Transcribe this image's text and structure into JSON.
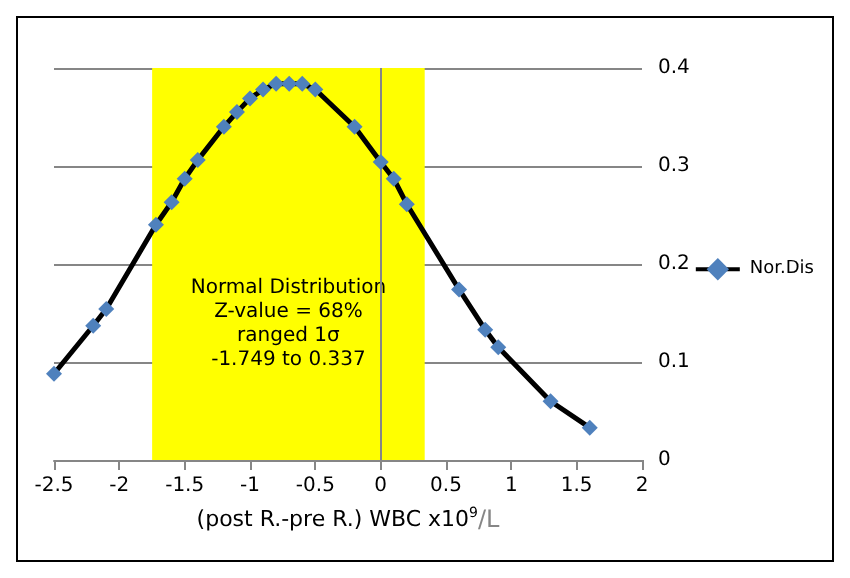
{
  "chart_data": {
    "type": "line",
    "xlabel": "(post R.-pre R.) WBC x10$^{9}$/L",
    "x": [
      -2.5,
      -2.2,
      -2.1,
      -1.72,
      -1.6,
      -1.5,
      -1.4,
      -1.2,
      -1.1,
      -1.0,
      -0.9,
      -0.8,
      -0.7,
      -0.6,
      -0.5,
      -0.2,
      0,
      0.1,
      0.2,
      0.6,
      0.8,
      0.9,
      1.3,
      1.6
    ],
    "series": [
      {
        "name": "Nor.Dis",
        "color": "#4f81bd",
        "values": [
          0.088,
          0.137,
          0.154,
          0.24,
          0.263,
          0.287,
          0.306,
          0.34,
          0.355,
          0.369,
          0.378,
          0.384,
          0.384,
          0.384,
          0.378,
          0.34,
          0.304,
          0.287,
          0.261,
          0.174,
          0.133,
          0.115,
          0.06,
          0.033
        ]
      }
    ],
    "xlim": [
      -2.5,
      2
    ],
    "xticks": [
      -2.5,
      -2,
      -1.5,
      -1,
      -0.5,
      0,
      0.5,
      1,
      1.5,
      2
    ],
    "ylim": [
      0,
      0.4
    ],
    "yticks": [
      0,
      0.1,
      0.2,
      0.3,
      0.4
    ],
    "grid": "y",
    "legend": "right",
    "marker": "diamond",
    "line_style": "solid",
    "ref_lines": [
      {
        "axis": "x",
        "value": 0,
        "color": "#868686"
      }
    ],
    "bands": [
      {
        "axis": "x",
        "from": -1.749,
        "to": 0.337,
        "color": "#ffff00",
        "label": "Normal Distribution\nZ-value = 68%\nranged 1σ\n-1.749 to 0.337"
      }
    ]
  }
}
